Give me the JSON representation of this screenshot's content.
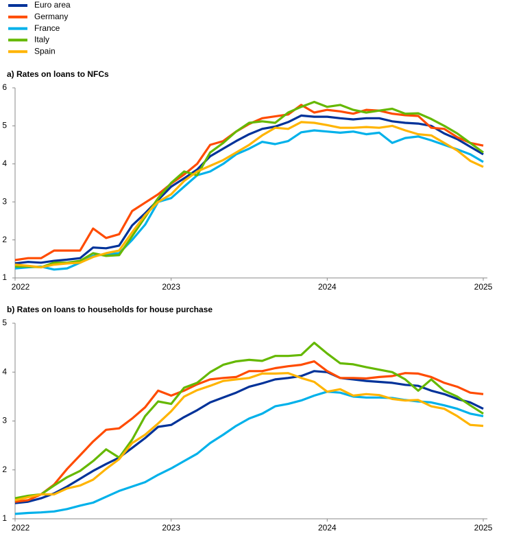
{
  "chart_data": [
    {
      "type": "line",
      "title": "a) Rates on loans to NFCs",
      "categories": [
        "2022",
        null,
        null,
        null,
        null,
        null,
        null,
        null,
        null,
        null,
        null,
        null,
        "2023",
        null,
        null,
        null,
        null,
        null,
        null,
        null,
        null,
        null,
        null,
        null,
        "2024",
        null,
        null,
        null,
        null,
        null,
        null,
        null,
        null,
        null,
        null,
        null,
        "2025"
      ],
      "ylim": [
        1,
        6
      ],
      "yticks": [
        1,
        2,
        3,
        4,
        5,
        6
      ],
      "series": [
        {
          "name": "Euro area",
          "color": "#003299",
          "values": [
            1.38,
            1.42,
            1.4,
            1.45,
            1.48,
            1.52,
            1.8,
            1.78,
            1.85,
            2.38,
            2.7,
            3.05,
            3.4,
            3.62,
            3.85,
            4.2,
            4.4,
            4.6,
            4.78,
            4.92,
            4.98,
            5.1,
            5.27,
            5.24,
            5.24,
            5.2,
            5.17,
            5.2,
            5.2,
            5.12,
            5.08,
            5.06,
            5.0,
            4.8,
            4.65,
            4.45,
            4.25
          ]
        },
        {
          "name": "Germany",
          "color": "#ff4b00",
          "values": [
            1.47,
            1.52,
            1.52,
            1.72,
            1.72,
            1.72,
            2.3,
            2.05,
            2.15,
            2.76,
            2.98,
            3.2,
            3.48,
            3.72,
            4.0,
            4.5,
            4.6,
            4.85,
            5.05,
            5.2,
            5.25,
            5.3,
            5.55,
            5.35,
            5.42,
            5.38,
            5.32,
            5.42,
            5.4,
            5.32,
            5.28,
            5.26,
            4.95,
            4.92,
            4.7,
            4.55,
            4.48
          ]
        },
        {
          "name": "France",
          "color": "#00b1ea",
          "values": [
            1.25,
            1.28,
            1.3,
            1.22,
            1.25,
            1.4,
            1.58,
            1.62,
            1.65,
            2.0,
            2.4,
            3.0,
            3.1,
            3.4,
            3.7,
            3.8,
            4.0,
            4.25,
            4.4,
            4.58,
            4.52,
            4.6,
            4.83,
            4.88,
            4.85,
            4.82,
            4.85,
            4.78,
            4.82,
            4.55,
            4.68,
            4.72,
            4.62,
            4.5,
            4.38,
            4.25,
            4.05
          ]
        },
        {
          "name": "Italy",
          "color": "#65b800",
          "values": [
            1.3,
            1.3,
            1.28,
            1.4,
            1.4,
            1.45,
            1.65,
            1.58,
            1.6,
            2.1,
            2.6,
            3.1,
            3.5,
            3.8,
            3.7,
            4.3,
            4.55,
            4.85,
            5.08,
            5.12,
            5.08,
            5.35,
            5.5,
            5.63,
            5.5,
            5.55,
            5.42,
            5.35,
            5.4,
            5.45,
            5.32,
            5.33,
            5.18,
            5.0,
            4.8,
            4.55,
            4.3
          ]
        },
        {
          "name": "Spain",
          "color": "#ffb400",
          "values": [
            1.35,
            1.32,
            1.28,
            1.35,
            1.38,
            1.4,
            1.55,
            1.65,
            1.72,
            2.2,
            2.65,
            3.0,
            3.2,
            3.55,
            3.8,
            3.95,
            4.1,
            4.3,
            4.5,
            4.75,
            4.95,
            4.92,
            5.1,
            5.08,
            5.02,
            4.95,
            4.95,
            4.97,
            4.95,
            5.0,
            4.88,
            4.78,
            4.75,
            4.55,
            4.35,
            4.08,
            3.92
          ]
        }
      ]
    },
    {
      "type": "line",
      "title": "b) Rates on loans to households for house purchase",
      "categories": [
        "2022",
        null,
        null,
        null,
        null,
        null,
        null,
        null,
        null,
        null,
        null,
        null,
        "2023",
        null,
        null,
        null,
        null,
        null,
        null,
        null,
        null,
        null,
        null,
        null,
        "2024",
        null,
        null,
        null,
        null,
        null,
        null,
        null,
        null,
        null,
        null,
        null,
        "2025"
      ],
      "ylim": [
        1,
        5
      ],
      "yticks": [
        1,
        2,
        3,
        4,
        5
      ],
      "series": [
        {
          "color": "#003299",
          "values": [
            1.32,
            1.35,
            1.42,
            1.52,
            1.66,
            1.82,
            1.98,
            2.12,
            2.25,
            2.45,
            2.65,
            2.88,
            2.92,
            3.08,
            3.22,
            3.38,
            3.48,
            3.58,
            3.7,
            3.77,
            3.85,
            3.88,
            3.92,
            4.02,
            4.0,
            3.88,
            3.85,
            3.82,
            3.8,
            3.78,
            3.74,
            3.72,
            3.62,
            3.55,
            3.45,
            3.38,
            3.25
          ]
        },
        {
          "color": "#ff4b00",
          "values": [
            1.35,
            1.38,
            1.5,
            1.7,
            2.02,
            2.3,
            2.58,
            2.82,
            2.85,
            3.05,
            3.28,
            3.62,
            3.52,
            3.62,
            3.75,
            3.85,
            3.88,
            3.9,
            4.02,
            4.02,
            4.08,
            4.12,
            4.15,
            4.22,
            4.02,
            3.88,
            3.88,
            3.87,
            3.9,
            3.92,
            3.98,
            3.97,
            3.9,
            3.78,
            3.7,
            3.58,
            3.55
          ]
        },
        {
          "color": "#00b1ea",
          "values": [
            1.1,
            1.12,
            1.13,
            1.15,
            1.2,
            1.27,
            1.33,
            1.45,
            1.57,
            1.66,
            1.75,
            1.9,
            2.03,
            2.18,
            2.33,
            2.55,
            2.72,
            2.9,
            3.05,
            3.15,
            3.3,
            3.35,
            3.42,
            3.52,
            3.6,
            3.58,
            3.5,
            3.48,
            3.48,
            3.47,
            3.43,
            3.4,
            3.38,
            3.32,
            3.25,
            3.15,
            3.1
          ]
        },
        {
          "color": "#65b800",
          "values": [
            1.42,
            1.47,
            1.5,
            1.68,
            1.85,
            1.98,
            2.18,
            2.42,
            2.25,
            2.62,
            3.1,
            3.4,
            3.35,
            3.68,
            3.78,
            4.0,
            4.15,
            4.22,
            4.25,
            4.23,
            4.33,
            4.33,
            4.35,
            4.6,
            4.38,
            4.18,
            4.16,
            4.1,
            4.05,
            4.0,
            3.85,
            3.62,
            3.85,
            3.62,
            3.5,
            3.32,
            3.15
          ]
        },
        {
          "color": "#ffb400",
          "values": [
            1.38,
            1.44,
            1.5,
            1.5,
            1.62,
            1.68,
            1.8,
            2.02,
            2.22,
            2.55,
            2.72,
            2.95,
            3.2,
            3.5,
            3.63,
            3.72,
            3.82,
            3.85,
            3.88,
            3.97,
            3.97,
            3.98,
            3.88,
            3.8,
            3.6,
            3.65,
            3.52,
            3.55,
            3.53,
            3.45,
            3.42,
            3.43,
            3.3,
            3.25,
            3.1,
            2.92,
            2.9
          ]
        }
      ]
    }
  ]
}
